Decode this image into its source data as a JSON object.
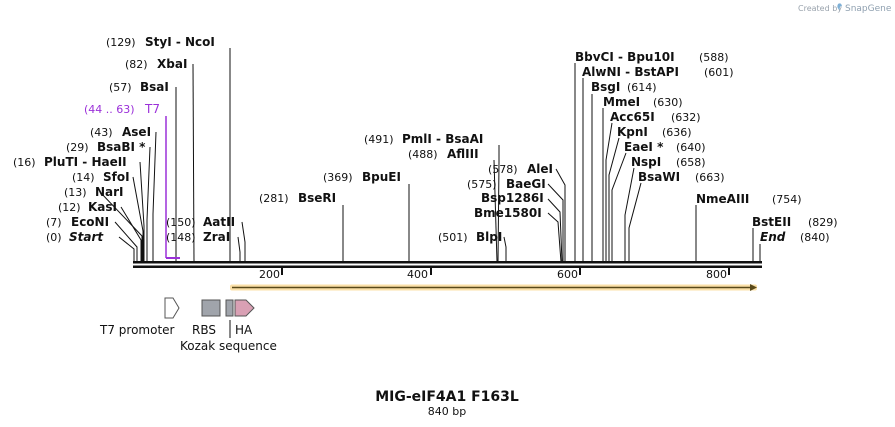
{
  "credit": {
    "prefix": "Created by",
    "brand": "SnapGene"
  },
  "construct": {
    "name": "MIG-eIF4A1 F163L",
    "length": "840 bp",
    "total_bp": 840
  },
  "ruler": {
    "ticks": [
      200,
      400,
      600,
      800
    ]
  },
  "cut_sites": [
    {
      "id": "start",
      "name": "Start",
      "pos_label": "(0)",
      "bp": 0,
      "italic": true
    },
    {
      "id": "econi",
      "name": "EcoNI",
      "pos_label": "(7)",
      "bp": 7
    },
    {
      "id": "kasi",
      "name": "KasI",
      "pos_label": "(12)",
      "bp": 12
    },
    {
      "id": "nari",
      "name": "NarI",
      "pos_label": "(13)",
      "bp": 13
    },
    {
      "id": "sfoi",
      "name": "SfoI",
      "pos_label": "(14)",
      "bp": 14
    },
    {
      "id": "pluti",
      "name": "PluTI  - HaeII",
      "pos_label": "(16)",
      "bp": 16
    },
    {
      "id": "bsabi",
      "name": "BsaBI *",
      "pos_label": "(29)",
      "bp": 29
    },
    {
      "id": "asei",
      "name": "AseI",
      "pos_label": "(43)",
      "bp": 43
    },
    {
      "id": "t7",
      "name": "T7",
      "pos_label": "(44 .. 63)",
      "bp": 44,
      "bp_end": 63,
      "primer": true
    },
    {
      "id": "bsai",
      "name": "BsaI",
      "pos_label": "(57)",
      "bp": 57
    },
    {
      "id": "xbai",
      "name": "XbaI",
      "pos_label": "(82)",
      "bp": 82
    },
    {
      "id": "styi",
      "name": "StyI  - NcoI",
      "pos_label": "(129)",
      "bp": 129
    },
    {
      "id": "zrai",
      "name": "ZraI",
      "pos_label": "(148)",
      "bp": 148
    },
    {
      "id": "aatii",
      "name": "AatII",
      "pos_label": "(150)",
      "bp": 150
    },
    {
      "id": "bseri",
      "name": "BseRI",
      "pos_label": "(281)",
      "bp": 281
    },
    {
      "id": "bpuei",
      "name": "BpuEI",
      "pos_label": "(369)",
      "bp": 369
    },
    {
      "id": "pmli",
      "name": "PmlI  - BsaAI",
      "pos_label": "(491)",
      "bp": 491
    },
    {
      "id": "afliii",
      "name": "AflIII",
      "pos_label": "(488)",
      "bp": 488
    },
    {
      "id": "blpi",
      "name": "BlpI",
      "pos_label": "(501)",
      "bp": 501
    },
    {
      "id": "bme1580i",
      "name": "Bme1580I",
      "pos_label": "",
      "bp": 578
    },
    {
      "id": "bsp1286i",
      "name": "Bsp1286I",
      "pos_label": "",
      "bp": 578
    },
    {
      "id": "baegi",
      "name": "BaeGI",
      "pos_label": "(575)",
      "bp": 575
    },
    {
      "id": "alei",
      "name": "AleI",
      "pos_label": "(578)",
      "bp": 578
    },
    {
      "id": "bbvci",
      "name": "BbvCI  - Bpu10I",
      "pos_label": "(588)",
      "bp": 588
    },
    {
      "id": "alwni",
      "name": "AlwNI  - BstAPI",
      "pos_label": "(601)",
      "bp": 601
    },
    {
      "id": "bsgi",
      "name": "BsgI",
      "pos_label": "(614)",
      "bp": 614
    },
    {
      "id": "mmei",
      "name": "MmeI",
      "pos_label": "(630)",
      "bp": 630
    },
    {
      "id": "acc65i",
      "name": "Acc65I",
      "pos_label": "(632)",
      "bp": 632
    },
    {
      "id": "kpni",
      "name": "KpnI",
      "pos_label": "(636)",
      "bp": 636
    },
    {
      "id": "eaei",
      "name": "EaeI *",
      "pos_label": "(640)",
      "bp": 640
    },
    {
      "id": "nspi",
      "name": "NspI",
      "pos_label": "(658)",
      "bp": 658
    },
    {
      "id": "bsawi",
      "name": "BsaWI",
      "pos_label": "(663)",
      "bp": 663
    },
    {
      "id": "nmeaiii",
      "name": "NmeAIII",
      "pos_label": "(754)",
      "bp": 754
    },
    {
      "id": "bsteii",
      "name": "BstEII",
      "pos_label": "(829)",
      "bp": 829
    },
    {
      "id": "end",
      "name": "End",
      "pos_label": "(840)",
      "bp": 840,
      "italic": true
    }
  ],
  "features": [
    {
      "id": "t7-promoter",
      "name": "T7 promoter",
      "color": "#ffffff"
    },
    {
      "id": "rbs",
      "name": "RBS",
      "color": "#a0a4ab"
    },
    {
      "id": "kozak",
      "name": "Kozak sequence",
      "color": "#a0a4ab"
    },
    {
      "id": "ha",
      "name": "HA",
      "color": "#d9a0b4"
    },
    {
      "id": "orf",
      "name": "",
      "color": "#f2be6e"
    }
  ],
  "colors": {
    "primer": "#9b30d9",
    "backbone": "#111111",
    "orf": "#f2be6e"
  }
}
